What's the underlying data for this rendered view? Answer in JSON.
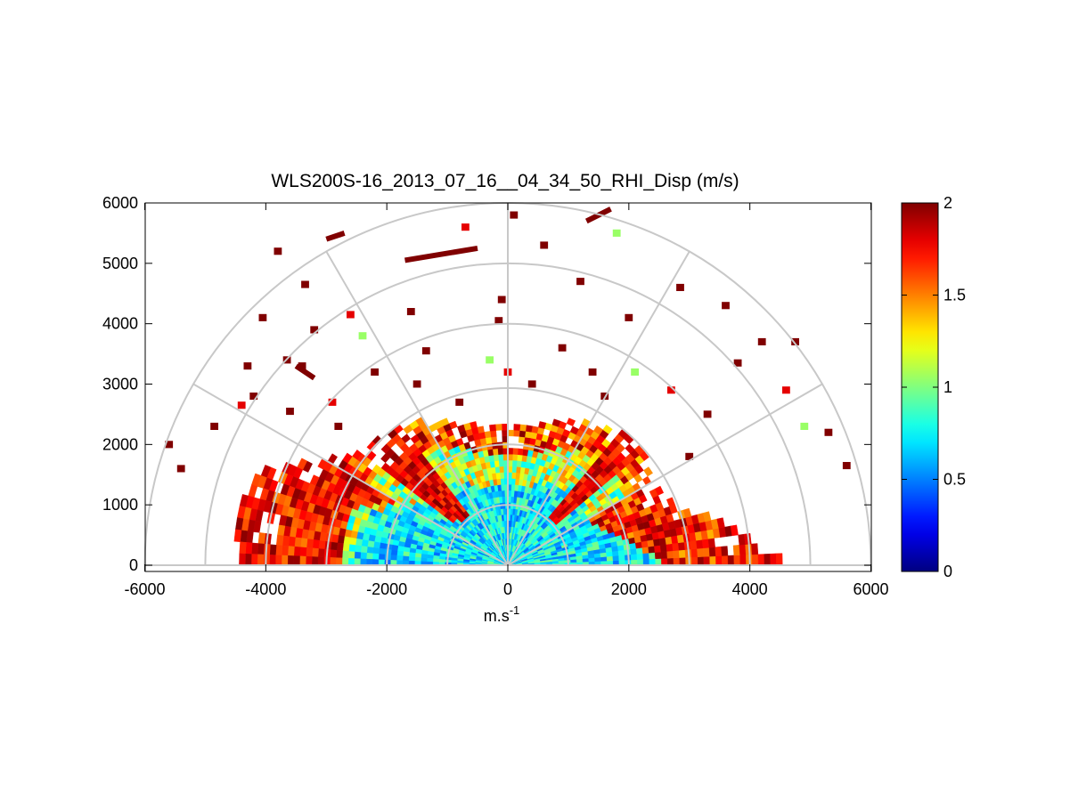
{
  "chart_data": {
    "type": "heatmap",
    "subtype": "polar RHI sector (range-height indicator)",
    "title": "WLS200S-16_2013_07_16__04_34_50_RHI_Disp (m/s)",
    "xlabel_base": "m.s",
    "xlabel_sup": "-1",
    "ylabel": "",
    "xlim": [
      -6000,
      6000
    ],
    "ylim": [
      0,
      6000
    ],
    "x_ticks": [
      "-6000",
      "-4000",
      "-2000",
      "0",
      "2000",
      "4000",
      "6000"
    ],
    "y_ticks": [
      "0",
      "1000",
      "2000",
      "3000",
      "4000",
      "5000",
      "6000"
    ],
    "range_rings": [
      1000,
      2000,
      3000,
      4000,
      5000,
      6000
    ],
    "spokes_deg": [
      0,
      30,
      60,
      90,
      120,
      150,
      180
    ],
    "colormap": "jet",
    "clim": [
      0,
      2
    ],
    "colorbar_ticks": [
      "0",
      "0.5",
      "1",
      "1.5",
      "2"
    ],
    "dense_max_range_by_elevation": [
      [
        0,
        4600
      ],
      [
        10,
        3700
      ],
      [
        20,
        2900
      ],
      [
        30,
        2700
      ],
      [
        40,
        2900
      ],
      [
        50,
        2850
      ],
      [
        60,
        2700
      ],
      [
        70,
        2500
      ],
      [
        80,
        2300
      ],
      [
        90,
        2250
      ],
      [
        100,
        2300
      ],
      [
        110,
        2450
      ],
      [
        120,
        2750
      ],
      [
        130,
        2900
      ],
      [
        140,
        3000
      ],
      [
        150,
        3400
      ],
      [
        160,
        4400
      ],
      [
        170,
        4500
      ],
      [
        180,
        4400
      ]
    ],
    "sparse_cells_xy_m": [
      [
        -3800,
        5200
      ],
      [
        -3350,
        4650
      ],
      [
        -2600,
        4150
      ],
      [
        -1600,
        4200
      ],
      [
        -2400,
        3800
      ],
      [
        -3200,
        3900
      ],
      [
        -4300,
        3300
      ],
      [
        -4200,
        2800
      ],
      [
        -3600,
        2550
      ],
      [
        -2900,
        2700
      ],
      [
        -2200,
        3200
      ],
      [
        -1500,
        3000
      ],
      [
        -800,
        2700
      ],
      [
        -300,
        3400
      ],
      [
        -150,
        4050
      ],
      [
        -100,
        4400
      ],
      [
        0,
        3200
      ],
      [
        400,
        3000
      ],
      [
        900,
        3600
      ],
      [
        1200,
        4700
      ],
      [
        1400,
        3200
      ],
      [
        1600,
        2800
      ],
      [
        2100,
        3200
      ],
      [
        2700,
        2900
      ],
      [
        2850,
        4600
      ],
      [
        3300,
        2500
      ],
      [
        3600,
        4300
      ],
      [
        3800,
        3350
      ],
      [
        4200,
        3700
      ],
      [
        4750,
        3700
      ],
      [
        4600,
        2900
      ],
      [
        4900,
        2300
      ],
      [
        5300,
        2200
      ],
      [
        5600,
        1650
      ],
      [
        -5600,
        2000
      ],
      [
        -5400,
        1600
      ],
      [
        -4850,
        2300
      ],
      [
        -4400,
        2650
      ],
      [
        -3400,
        3300
      ],
      [
        -2800,
        2300
      ],
      [
        1800,
        5500
      ],
      [
        2000,
        4100
      ],
      [
        600,
        5300
      ],
      [
        100,
        5800
      ],
      [
        -700,
        5600
      ],
      [
        -1350,
        3550
      ],
      [
        3000,
        1800
      ],
      [
        -4050,
        4100
      ],
      [
        -3650,
        3400
      ]
    ],
    "streak_segments_xy_m": [
      [
        [
          -1700,
          5050
        ],
        [
          -500,
          5250
        ]
      ],
      [
        [
          -3000,
          5400
        ],
        [
          -2700,
          5500
        ]
      ],
      [
        [
          1300,
          5700
        ],
        [
          1700,
          5900
        ]
      ],
      [
        [
          -3500,
          3300
        ],
        [
          -3200,
          3100
        ]
      ]
    ]
  },
  "colors": {
    "axes": "#000000",
    "grid": "#c8c8c8",
    "background": "#ffffff"
  }
}
